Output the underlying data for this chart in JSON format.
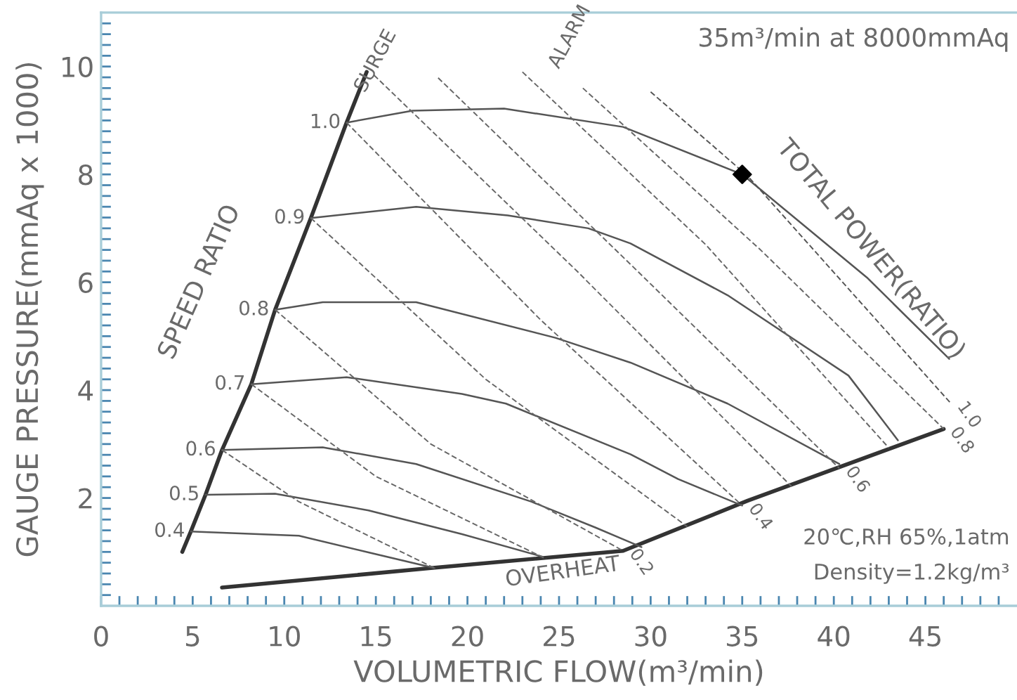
{
  "chart_data": {
    "type": "line",
    "xlabel": "VOLUMETRIC FLOW(m³/min)",
    "ylabel": "GAUGE PRESSURE(mmAq x 1000)",
    "xlim": [
      0,
      50
    ],
    "ylim": [
      0,
      11
    ],
    "xticks": [
      0,
      {
        "value": 1,
        "label": null
      },
      {
        "value": 2,
        "label": null
      },
      {
        "value": 3,
        "label": null
      },
      {
        "value": 4,
        "label": null
      },
      5,
      {
        "value": 6,
        "label": null
      },
      {
        "value": 7,
        "label": null
      },
      {
        "value": 8,
        "label": null
      },
      {
        "value": 9,
        "label": null
      },
      10,
      {
        "value": 11,
        "label": null
      },
      {
        "value": 12,
        "label": null
      },
      {
        "value": 13,
        "label": null
      },
      {
        "value": 14,
        "label": null
      },
      15,
      {
        "value": 16,
        "label": null
      },
      {
        "value": 17,
        "label": null
      },
      {
        "value": 18,
        "label": null
      },
      {
        "value": 19,
        "label": null
      },
      20,
      {
        "value": 21,
        "label": null
      },
      {
        "value": 22,
        "label": null
      },
      {
        "value": 23,
        "label": null
      },
      {
        "value": 24,
        "label": null
      },
      25,
      {
        "value": 26,
        "label": null
      },
      {
        "value": 27,
        "label": null
      },
      {
        "value": 28,
        "label": null
      },
      {
        "value": 29,
        "label": null
      },
      30,
      {
        "value": 31,
        "label": null
      },
      {
        "value": 32,
        "label": null
      },
      {
        "value": 33,
        "label": null
      },
      {
        "value": 34,
        "label": null
      },
      35,
      {
        "value": 36,
        "label": null
      },
      {
        "value": 37,
        "label": null
      },
      {
        "value": 38,
        "label": null
      },
      {
        "value": 39,
        "label": null
      },
      40,
      {
        "value": 41,
        "label": null
      },
      {
        "value": 42,
        "label": null
      },
      {
        "value": 43,
        "label": null
      },
      {
        "value": 44,
        "label": null
      },
      45,
      {
        "value": 46,
        "label": null
      },
      {
        "value": 47,
        "label": null
      },
      {
        "value": 48,
        "label": null
      },
      {
        "value": 49,
        "label": null
      }
    ],
    "yticks": [
      {
        "value": 0.2,
        "label": null
      },
      {
        "value": 0.4,
        "label": null
      },
      {
        "value": 0.6,
        "label": null
      },
      {
        "value": 0.8,
        "label": null
      },
      {
        "value": 1,
        "label": null
      },
      {
        "value": 1.2,
        "label": null
      },
      {
        "value": 1.4,
        "label": null
      },
      {
        "value": 1.6,
        "label": null
      },
      {
        "value": 1.8,
        "label": null
      },
      2,
      {
        "value": 2.2,
        "label": null
      },
      {
        "value": 2.4,
        "label": null
      },
      {
        "value": 2.6,
        "label": null
      },
      {
        "value": 2.8,
        "label": null
      },
      {
        "value": 3,
        "label": null
      },
      {
        "value": 3.2,
        "label": null
      },
      {
        "value": 3.4,
        "label": null
      },
      {
        "value": 3.6,
        "label": null
      },
      {
        "value": 3.8,
        "label": null
      },
      4,
      {
        "value": 4.2,
        "label": null
      },
      {
        "value": 4.4,
        "label": null
      },
      {
        "value": 4.6,
        "label": null
      },
      {
        "value": 4.8,
        "label": null
      },
      {
        "value": 5,
        "label": null
      },
      {
        "value": 5.2,
        "label": null
      },
      {
        "value": 5.4,
        "label": null
      },
      {
        "value": 5.6,
        "label": null
      },
      {
        "value": 5.8,
        "label": null
      },
      6,
      {
        "value": 6.2,
        "label": null
      },
      {
        "value": 6.4,
        "label": null
      },
      {
        "value": 6.6,
        "label": null
      },
      {
        "value": 6.8,
        "label": null
      },
      {
        "value": 7,
        "label": null
      },
      {
        "value": 7.2,
        "label": null
      },
      {
        "value": 7.4,
        "label": null
      },
      {
        "value": 7.6,
        "label": null
      },
      {
        "value": 7.8,
        "label": null
      },
      8,
      {
        "value": 8.2,
        "label": null
      },
      {
        "value": 8.4,
        "label": null
      },
      {
        "value": 8.6,
        "label": null
      },
      {
        "value": 8.8,
        "label": null
      },
      {
        "value": 9,
        "label": null
      },
      {
        "value": 9.2,
        "label": null
      },
      {
        "value": 9.4,
        "label": null
      },
      {
        "value": 9.6,
        "label": null
      },
      {
        "value": 9.8,
        "label": null
      },
      10,
      {
        "value": 10.2,
        "label": null
      },
      {
        "value": 10.4,
        "label": null
      },
      {
        "value": 10.6,
        "label": null
      },
      {
        "value": 10.8,
        "label": null
      }
    ],
    "grid": false,
    "legend": false,
    "series": [
      {
        "color": "#333333",
        "line_style": "solid",
        "x": [
          4.43,
          4.9,
          5.7,
          6.6,
          8.2,
          9.5,
          11.45,
          13.4,
          14.5
        ],
        "values": [
          1.0,
          1.38,
          2.06,
          2.89,
          4.11,
          5.49,
          7.19,
          8.96,
          9.9
        ]
      },
      {
        "color": "#333333",
        "line_style": "solid",
        "x": [
          6.6,
          18,
          28.5,
          35.3,
          46
        ],
        "values": [
          0.34,
          0.7,
          1.02,
          1.95,
          3.28
        ]
      },
      {
        "name": "0.4",
        "color": "#555555",
        "line_style": "solid",
        "x": [
          4.9,
          10.8,
          14.6,
          18.2
        ],
        "values": [
          1.38,
          1.3,
          0.99,
          0.7
        ]
      },
      {
        "name": "0.5",
        "color": "#555555",
        "line_style": "solid",
        "x": [
          5.7,
          9.5,
          14.6,
          19.7,
          24.1
        ],
        "values": [
          2.06,
          2.08,
          1.77,
          1.33,
          0.91
        ]
      },
      {
        "name": "0.6",
        "color": "#555555",
        "line_style": "solid",
        "x": [
          6.6,
          12.1,
          17.2,
          23.5,
          27,
          29.5
        ],
        "values": [
          2.89,
          2.94,
          2.63,
          1.93,
          1.45,
          1.09
        ]
      },
      {
        "name": "0.7",
        "color": "#555555",
        "line_style": "solid",
        "x": [
          8.2,
          13.4,
          19.7,
          22.1,
          28.9,
          31.5,
          35
        ],
        "values": [
          4.11,
          4.24,
          3.93,
          3.75,
          2.81,
          2.35,
          1.86
        ]
      },
      {
        "name": "0.8",
        "color": "#555555",
        "line_style": "solid",
        "x": [
          9.5,
          12.1,
          17.2,
          24.8,
          28.9,
          34.2,
          40.3
        ],
        "values": [
          5.49,
          5.63,
          5.63,
          4.97,
          4.51,
          3.75,
          2.63
        ]
      },
      {
        "name": "0.9",
        "color": "#555555",
        "line_style": "solid",
        "x": [
          11.45,
          17.2,
          22.2,
          26.6,
          28.9,
          34.2,
          40.8,
          43.5
        ],
        "values": [
          7.19,
          7.4,
          7.24,
          7.0,
          6.72,
          5.76,
          4.27,
          3.07
        ]
      },
      {
        "name": "1.0",
        "color": "#555555",
        "line_style": "solid",
        "x": [
          13.4,
          17,
          22,
          28.5,
          35,
          41.8,
          46.3
        ],
        "values": [
          8.96,
          9.18,
          9.22,
          8.88,
          8.0,
          6.09,
          4.58
        ]
      },
      {
        "color": "#666666",
        "line_style": "dashed",
        "x": [
          6.6,
          10.8,
          18.2
        ],
        "values": [
          2.89,
          1.93,
          0.7
        ]
      },
      {
        "color": "#666666",
        "line_style": "dashed",
        "x": [
          8.2,
          15,
          24.3
        ],
        "values": [
          4.11,
          2.4,
          0.87
        ]
      },
      {
        "name": "0.2",
        "color": "#666666",
        "line_style": "dashed",
        "x": [
          9.5,
          18,
          28.5
        ],
        "values": [
          5.49,
          3.0,
          1.02
        ]
      },
      {
        "color": "#666666",
        "line_style": "dashed",
        "x": [
          11.45,
          21,
          32
        ],
        "values": [
          7.19,
          4.2,
          1.47
        ]
      },
      {
        "name": "0.4",
        "color": "#666666",
        "line_style": "dashed",
        "x": [
          13.4,
          24,
          35
        ],
        "values": [
          8.96,
          5.3,
          1.86
        ]
      },
      {
        "color": "#666666",
        "line_style": "dashed",
        "x": [
          14.9,
          26,
          37.7
        ],
        "values": [
          9.84,
          6.2,
          2.21
        ]
      },
      {
        "name": "0.6",
        "color": "#666666",
        "line_style": "dashed",
        "x": [
          18.4,
          29,
          40.3
        ],
        "values": [
          9.79,
          6.3,
          2.55
        ]
      },
      {
        "color": "#666666",
        "line_style": "dashed",
        "x": [
          23,
          33,
          43
        ],
        "values": [
          9.9,
          6.7,
          2.93
        ]
      },
      {
        "name": "0.8",
        "color": "#666666",
        "line_style": "dashed",
        "x": [
          26.3,
          36,
          46
        ],
        "values": [
          9.6,
          6.6,
          3.28
        ]
      },
      {
        "name": "1.0",
        "color": "#555555",
        "line_style": "dashed",
        "x": [
          30,
          35.3,
          46.4
        ],
        "values": [
          9.53,
          7.97,
          3.75
        ]
      },
      {
        "type": "scatter",
        "color": "#000000",
        "marker": "diamond",
        "x": [
          35
        ],
        "values": [
          8
        ]
      }
    ],
    "annotations": [
      "35m³/min at 8000mmAq",
      "SPEED RATIO",
      "TOTAL POWER(RATIO)",
      "SURGE",
      "ALARM",
      "OVERHEAT",
      "20℃,RH 65%,1atm",
      "Density=1.2kg/m³"
    ]
  }
}
